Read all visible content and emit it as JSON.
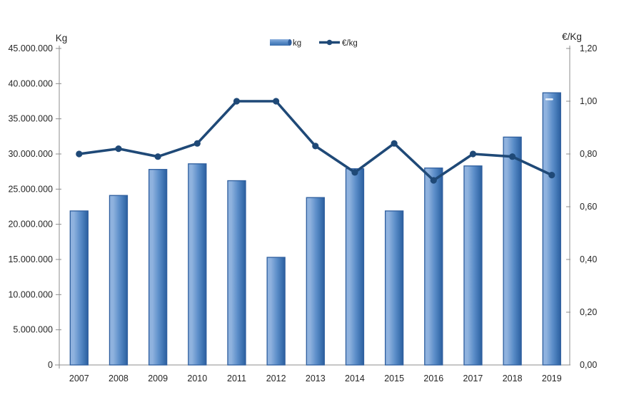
{
  "chart_data": {
    "type": "bar+line",
    "title": "",
    "categories": [
      "2007",
      "2008",
      "2009",
      "2010",
      "2011",
      "2012",
      "2013",
      "2014",
      "2015",
      "2016",
      "2017",
      "2018",
      "2019"
    ],
    "series": [
      {
        "name": "kg",
        "type": "bar",
        "axis": "left",
        "values": [
          21900000,
          24100000,
          27800000,
          28600000,
          26200000,
          15300000,
          23800000,
          27900000,
          21900000,
          28000000,
          28300000,
          32400000,
          38700000
        ]
      },
      {
        "name": "€/kg",
        "type": "line",
        "axis": "right",
        "values": [
          0.8,
          0.82,
          0.79,
          0.84,
          1.0,
          1.0,
          0.83,
          0.73,
          0.84,
          0.7,
          0.8,
          0.79,
          0.72
        ]
      }
    ],
    "left_axis": {
      "title": "Kg",
      "min": 0,
      "max": 45000000,
      "tick_labels": [
        "45.000.000",
        "40.000.000",
        "35.000.000",
        "30.000.000",
        "25.000.000",
        "20.000.000",
        "15.000.000",
        "10.000.000",
        "5.000.000",
        "0"
      ]
    },
    "right_axis": {
      "title": "€/Kg",
      "min": 0,
      "max": 1.2,
      "tick_labels": [
        "1,20",
        "1,00",
        "0,80",
        "0,60",
        "0,40",
        "0,20",
        "0,00"
      ]
    },
    "legend": {
      "position": "top-center",
      "items": [
        {
          "label": "kg",
          "marker": "bar-swatch"
        },
        {
          "label": "€/kg",
          "marker": "line-marker"
        }
      ]
    },
    "grid": false,
    "colors": {
      "bar_light": "#8FB2DE",
      "bar_mid": "#5C8EC9",
      "bar_dark": "#3A6FAE",
      "bar_edge": "#2E5E9E",
      "line": "#1F4977",
      "axis": "#8C8C8C",
      "text": "#262626"
    }
  }
}
